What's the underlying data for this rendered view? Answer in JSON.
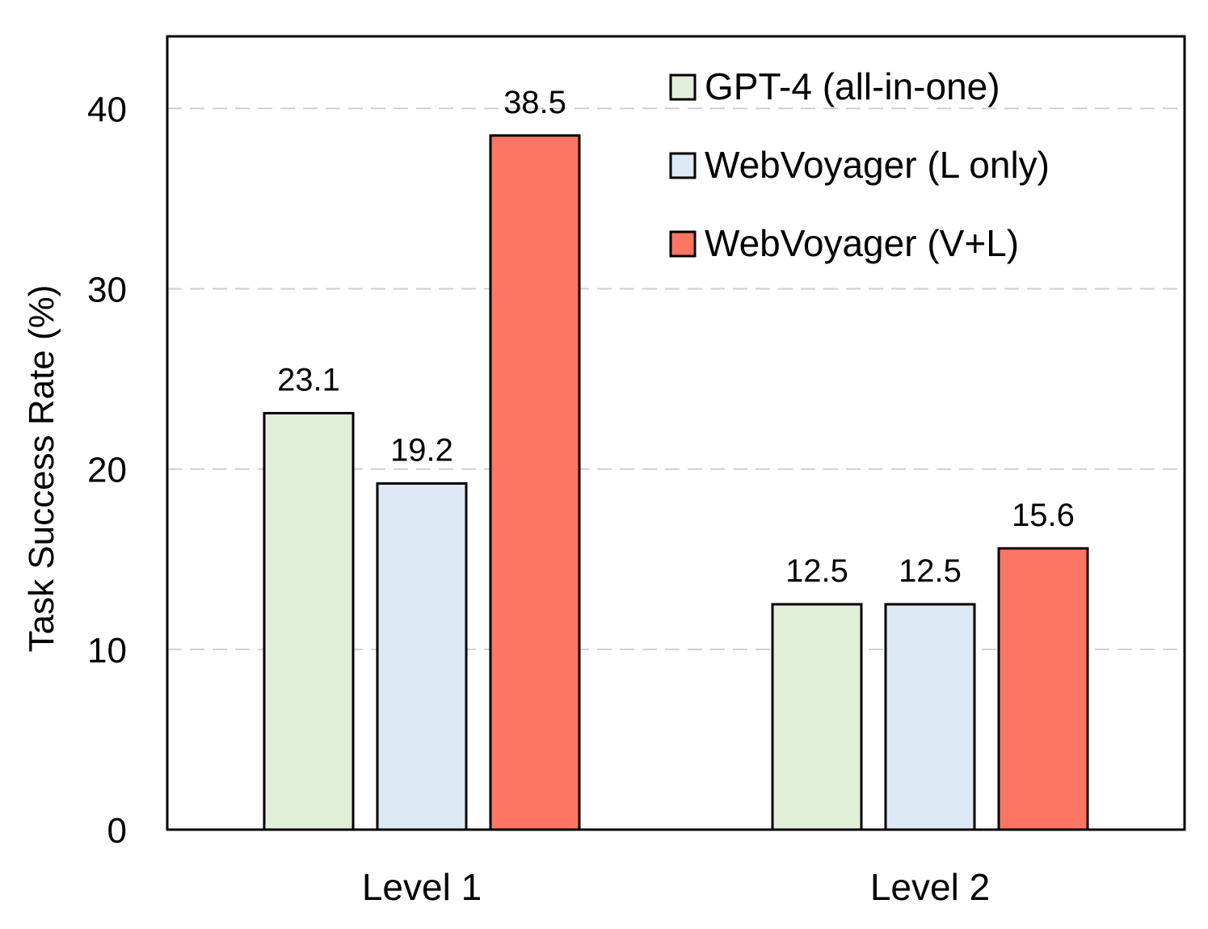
{
  "chart_data": {
    "type": "bar",
    "title": "",
    "xlabel": "",
    "ylabel": "Task Success Rate (%)",
    "ylim": [
      0,
      44
    ],
    "yticks": [
      0,
      10,
      20,
      30,
      40
    ],
    "grid": true,
    "legend_position": "top-right",
    "categories": [
      "Level 1",
      "Level 2"
    ],
    "series": [
      {
        "name": "GPT-4 (all-in-one)",
        "color": "#e2efd9",
        "values": [
          23.1,
          12.5
        ],
        "labels": [
          "23.1",
          "12.5"
        ]
      },
      {
        "name": "WebVoyager (L only)",
        "color": "#dde9f5",
        "values": [
          19.2,
          12.5
        ],
        "labels": [
          "19.2",
          "12.5"
        ]
      },
      {
        "name": "WebVoyager (V+L)",
        "color": "#ff7563",
        "values": [
          38.5,
          15.6
        ],
        "labels": [
          "38.5",
          "15.6"
        ]
      }
    ]
  }
}
